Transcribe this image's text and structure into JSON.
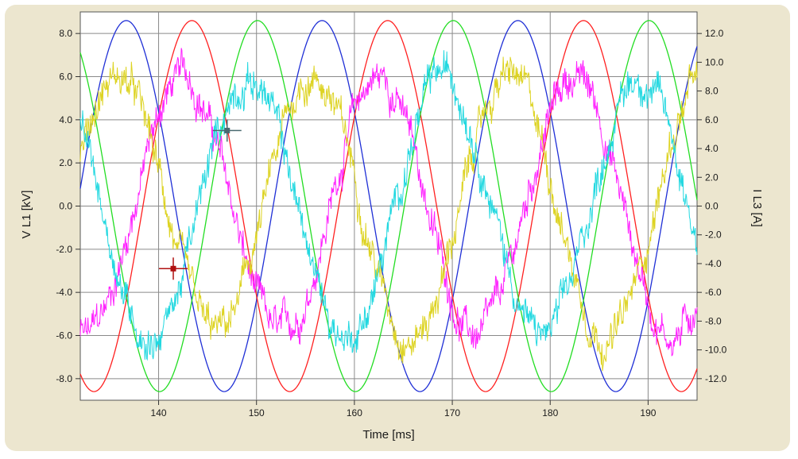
{
  "chart_data": {
    "type": "line",
    "xlabel": "Time [ms]",
    "ylabel_left": "V L1 [kV]",
    "ylabel_right": "I L3 [A]",
    "xlim": [
      132,
      195
    ],
    "ylim_left": [
      -9.0,
      9.0
    ],
    "ylim_right": [
      -13.5,
      13.5
    ],
    "x_ticks": [
      140,
      150,
      160,
      170,
      180,
      190
    ],
    "y_ticks_left": [
      -8.0,
      -6.0,
      -4.0,
      -2.0,
      0.0,
      2.0,
      4.0,
      6.0,
      8.0
    ],
    "y_ticks_right": [
      -12.0,
      -10.0,
      -8.0,
      -6.0,
      -4.0,
      -2.0,
      0.0,
      2.0,
      4.0,
      6.0,
      8.0,
      10.0,
      12.0
    ],
    "grid": true,
    "voltage_series": [
      {
        "color": "#1f2fd6",
        "amplitude_kV": 8.6,
        "frequency_Hz": 50,
        "peak_time_ms": 136.7
      },
      {
        "color": "#ff2020",
        "amplitude_kV": 8.6,
        "frequency_Hz": 50,
        "peak_time_ms": 143.4
      },
      {
        "color": "#22dd22",
        "amplitude_kV": 8.6,
        "frequency_Hz": 50,
        "peak_time_ms": 150.1
      }
    ],
    "current_series": [
      {
        "color": "#ff22ff",
        "amplitude_A": 9.0,
        "frequency_Hz": 50,
        "peak_time_ms": 142.5,
        "noisy": true
      },
      {
        "color": "#ddd322",
        "amplitude_A": 9.0,
        "frequency_Hz": 50,
        "peak_time_ms": 135.8,
        "noisy": true
      },
      {
        "color": "#22d8e0",
        "amplitude_A": 9.0,
        "frequency_Hz": 50,
        "peak_time_ms": 149.2,
        "noisy": true
      }
    ],
    "cursors": [
      {
        "color": "#b01010",
        "x_ms": 141.5,
        "y_kV": -2.9
      },
      {
        "color": "#4a6a70",
        "x_ms": 147.0,
        "y_kV": 3.5
      }
    ]
  }
}
